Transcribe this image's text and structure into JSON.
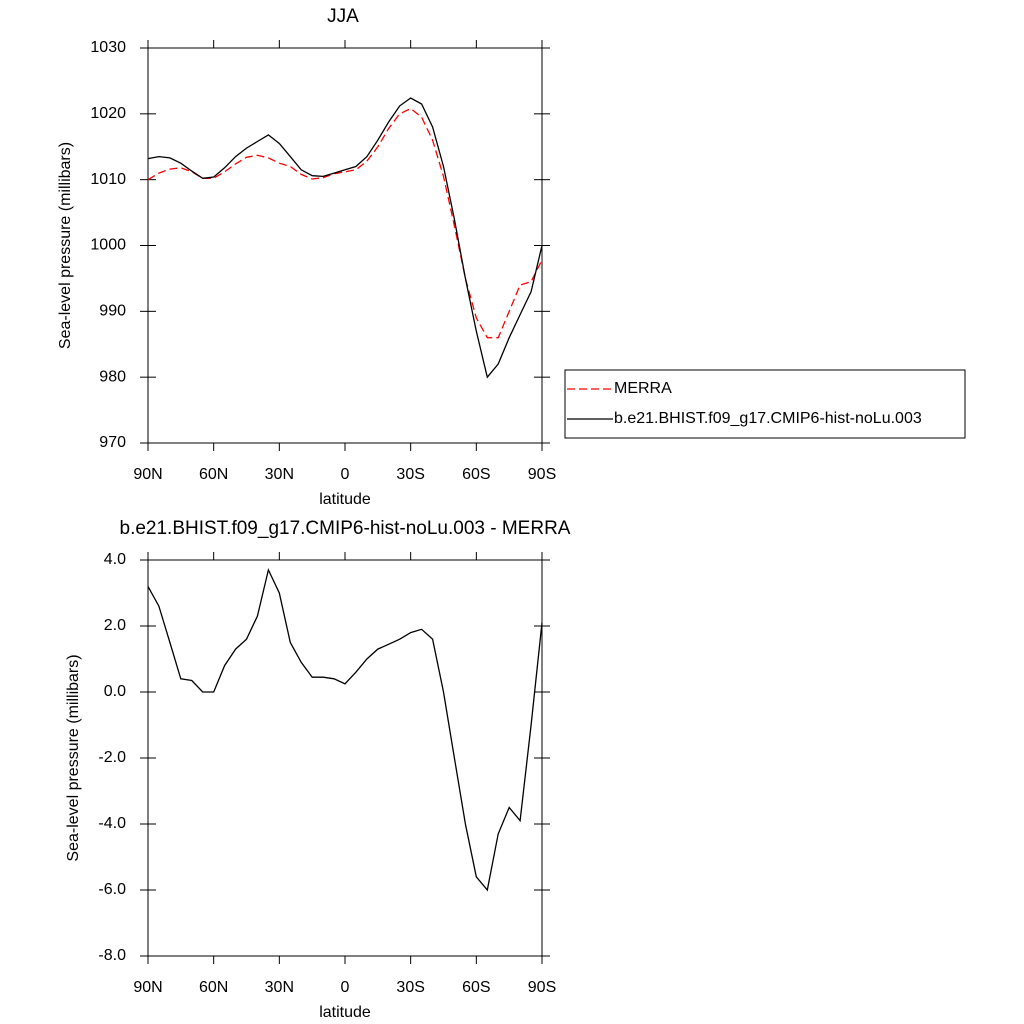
{
  "chart_data": [
    {
      "type": "line",
      "title": "JJA",
      "x_label": "latitude",
      "y_label": "Sea-level pressure (millibars)",
      "x": [
        90,
        85,
        80,
        75,
        70,
        65,
        60,
        55,
        50,
        45,
        40,
        35,
        30,
        25,
        20,
        15,
        10,
        5,
        0,
        -5,
        -10,
        -15,
        -20,
        -25,
        -30,
        -35,
        -40,
        -45,
        -50,
        -55,
        -60,
        -65,
        -70,
        -75,
        -80,
        -85,
        -90
      ],
      "xlim": [
        90,
        -90
      ],
      "xticks": [
        {
          "value": 90,
          "label": "90N"
        },
        {
          "value": 60,
          "label": "60N"
        },
        {
          "value": 30,
          "label": "30N"
        },
        0,
        {
          "value": -30,
          "label": "30S"
        },
        {
          "value": -60,
          "label": "60S"
        },
        {
          "value": -90,
          "label": "90S"
        }
      ],
      "ylim": [
        970,
        1030
      ],
      "yticks": [
        970,
        980,
        990,
        1000,
        1010,
        1020,
        1030
      ],
      "legend": "right",
      "series": [
        {
          "name": "MERRA",
          "color": "#ff0000",
          "dash": true,
          "values": [
            1010,
            1011,
            1011.6,
            1011.8,
            1011.2,
            1010.2,
            1010.2,
            1011.2,
            1012.4,
            1013.4,
            1013.7,
            1013.3,
            1012.5,
            1012,
            1010.8,
            1010.1,
            1010.3,
            1010.9,
            1011.2,
            1011.5,
            1012.8,
            1015,
            1017.8,
            1020,
            1020.8,
            1019.5,
            1016,
            1010.5,
            1003,
            995,
            989,
            986,
            986,
            990,
            994,
            994.5,
            997.8
          ]
        },
        {
          "name": "b.e21.BHIST.f09_g17.CMIP6-hist-noLu.003",
          "color": "#000000",
          "dash": false,
          "values": [
            1013.2,
            1013.5,
            1013.3,
            1012.5,
            1011.3,
            1010.2,
            1010.4,
            1011.8,
            1013.5,
            1014.8,
            1015.8,
            1016.8,
            1015.5,
            1013.5,
            1011.5,
            1010.6,
            1010.5,
            1011,
            1011.5,
            1012,
            1013.5,
            1016,
            1018.8,
            1021.2,
            1022.4,
            1021.5,
            1018,
            1012,
            1004,
            995,
            987,
            980,
            982,
            986,
            989.5,
            993,
            1000
          ]
        }
      ]
    },
    {
      "type": "line",
      "title": "b.e21.BHIST.f09_g17.CMIP6-hist-noLu.003 - MERRA",
      "x_label": "latitude",
      "y_label": "Sea-level pressure (millibars)",
      "x": [
        90,
        85,
        80,
        75,
        70,
        65,
        60,
        55,
        50,
        45,
        40,
        35,
        30,
        25,
        20,
        15,
        10,
        5,
        0,
        -5,
        -10,
        -15,
        -20,
        -25,
        -30,
        -35,
        -40,
        -45,
        -50,
        -55,
        -60,
        -65,
        -70,
        -75,
        -80,
        -85,
        -90
      ],
      "xlim": [
        90,
        -90
      ],
      "xticks": [
        {
          "value": 90,
          "label": "90N"
        },
        {
          "value": 60,
          "label": "60N"
        },
        {
          "value": 30,
          "label": "30N"
        },
        0,
        {
          "value": -30,
          "label": "30S"
        },
        {
          "value": -60,
          "label": "60S"
        },
        {
          "value": -90,
          "label": "90S"
        }
      ],
      "ylim": [
        -8,
        4
      ],
      "yticks": [
        {
          "value": -8,
          "label": "-8.0"
        },
        {
          "value": -6,
          "label": "-6.0"
        },
        {
          "value": -4,
          "label": "-4.0"
        },
        {
          "value": -2,
          "label": "-2.0"
        },
        {
          "value": 0,
          "label": "0.0"
        },
        {
          "value": 2,
          "label": "2.0"
        },
        {
          "value": 4,
          "label": "4.0"
        }
      ],
      "series": [
        {
          "color": "#000000",
          "dash": false,
          "values": [
            3.2,
            2.6,
            1.5,
            0.4,
            0.35,
            0,
            0,
            0.8,
            1.3,
            1.6,
            2.3,
            3.7,
            3,
            1.5,
            0.9,
            0.45,
            0.45,
            0.4,
            0.25,
            0.6,
            1,
            1.3,
            1.45,
            1.6,
            1.8,
            1.9,
            1.6,
            0,
            -2,
            -4,
            -5.6,
            -6,
            -4.3,
            -3.5,
            -3.9,
            -1,
            2.1
          ]
        }
      ]
    }
  ]
}
